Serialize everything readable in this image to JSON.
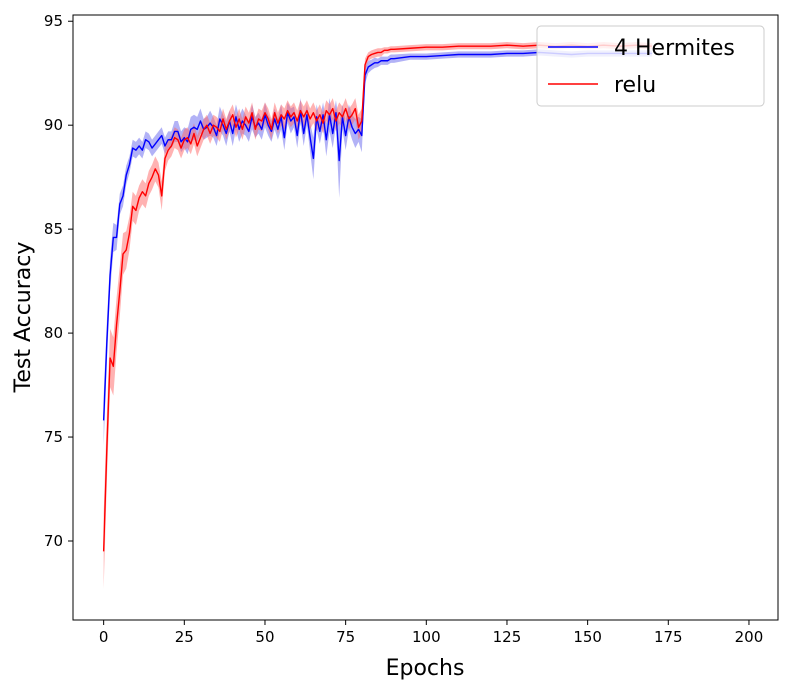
{
  "chart_data": {
    "type": "line",
    "xlabel": "Epochs",
    "ylabel": "Test Accuracy",
    "xlim": [
      -9.5,
      209
    ],
    "ylim": [
      66.2,
      95.3
    ],
    "xticks": [
      0,
      25,
      50,
      75,
      100,
      125,
      150,
      175,
      200
    ],
    "yticks": [
      70,
      75,
      80,
      85,
      90,
      95
    ],
    "grid": false,
    "legend_position": "top-right",
    "series": [
      {
        "name": "4 Hermites",
        "color": "#0000ff",
        "band_color": "#6666ee",
        "x": [
          0,
          1,
          2,
          3,
          4,
          5,
          6,
          7,
          8,
          9,
          10,
          11,
          12,
          13,
          14,
          15,
          16,
          17,
          18,
          19,
          20,
          21,
          22,
          23,
          24,
          25,
          26,
          27,
          28,
          29,
          30,
          31,
          32,
          33,
          34,
          35,
          36,
          37,
          38,
          39,
          40,
          41,
          42,
          43,
          44,
          45,
          46,
          47,
          48,
          49,
          50,
          51,
          52,
          53,
          54,
          55,
          56,
          57,
          58,
          59,
          60,
          61,
          62,
          63,
          64,
          65,
          66,
          67,
          68,
          69,
          70,
          71,
          72,
          73,
          74,
          75,
          76,
          77,
          78,
          79,
          80,
          81,
          82,
          83,
          84,
          85,
          86,
          87,
          88,
          89,
          90,
          95,
          100,
          105,
          110,
          115,
          120,
          125,
          130,
          135,
          140,
          145,
          150,
          155,
          160,
          165,
          170
        ],
        "y": [
          75.8,
          79.6,
          82.8,
          84.6,
          84.6,
          86.2,
          86.6,
          87.6,
          88.1,
          88.9,
          88.8,
          89.0,
          88.8,
          89.3,
          89.2,
          88.9,
          89.1,
          89.3,
          89.5,
          89.0,
          89.3,
          89.3,
          89.7,
          89.7,
          89.2,
          89.4,
          89.2,
          89.8,
          89.9,
          89.8,
          90.2,
          89.8,
          89.9,
          90.1,
          89.9,
          89.5,
          90.3,
          90.0,
          89.6,
          90.2,
          89.6,
          90.4,
          89.8,
          90.2,
          90.0,
          89.7,
          90.4,
          89.9,
          90.1,
          89.8,
          90.5,
          90.0,
          89.7,
          90.3,
          89.8,
          90.4,
          89.4,
          90.6,
          90.2,
          90.4,
          89.5,
          90.7,
          89.6,
          90.5,
          89.4,
          88.4,
          90.4,
          89.7,
          90.5,
          89.3,
          90.5,
          89.6,
          90.6,
          88.3,
          90.4,
          89.5,
          90.4,
          89.9,
          89.6,
          89.8,
          89.5,
          92.4,
          92.8,
          92.9,
          93.0,
          93.0,
          93.1,
          93.1,
          93.1,
          93.2,
          93.2,
          93.3,
          93.3,
          93.35,
          93.4,
          93.4,
          93.4,
          93.45,
          93.45,
          93.5,
          93.45,
          93.4,
          93.45,
          93.45,
          93.45,
          93.45,
          93.45
        ],
        "band": [
          1.2,
          1.0,
          0.8,
          0.7,
          0.6,
          0.5,
          0.5,
          0.45,
          0.4,
          0.4,
          0.4,
          0.4,
          0.4,
          0.4,
          0.4,
          0.4,
          0.4,
          0.4,
          0.4,
          0.4,
          0.4,
          0.4,
          0.5,
          0.5,
          0.5,
          0.5,
          0.6,
          0.6,
          0.6,
          0.6,
          0.6,
          0.5,
          0.5,
          0.6,
          0.5,
          0.5,
          0.6,
          0.5,
          0.6,
          0.5,
          0.6,
          0.6,
          0.6,
          0.6,
          0.5,
          0.5,
          0.6,
          0.5,
          0.5,
          0.5,
          0.6,
          0.5,
          0.5,
          0.5,
          0.5,
          0.6,
          0.6,
          0.5,
          0.6,
          0.5,
          0.6,
          0.6,
          0.6,
          0.5,
          0.7,
          1.0,
          0.6,
          0.6,
          0.6,
          0.8,
          0.8,
          0.7,
          0.6,
          1.8,
          0.6,
          0.7,
          0.6,
          0.6,
          0.7,
          0.6,
          0.8,
          0.4,
          0.3,
          0.25,
          0.25,
          0.2,
          0.2,
          0.2,
          0.2,
          0.2,
          0.2,
          0.15,
          0.15,
          0.15,
          0.15,
          0.15,
          0.15,
          0.15,
          0.15,
          0.15,
          0.15,
          0.15,
          0.15,
          0.15,
          0.15,
          0.15,
          0.15
        ]
      },
      {
        "name": "relu",
        "color": "#ff0000",
        "band_color": "#ff6666",
        "x": [
          0,
          1,
          2,
          3,
          4,
          5,
          6,
          7,
          8,
          9,
          10,
          11,
          12,
          13,
          14,
          15,
          16,
          17,
          18,
          19,
          20,
          21,
          22,
          23,
          24,
          25,
          26,
          27,
          28,
          29,
          30,
          31,
          32,
          33,
          34,
          35,
          36,
          37,
          38,
          39,
          40,
          41,
          42,
          43,
          44,
          45,
          46,
          47,
          48,
          49,
          50,
          51,
          52,
          53,
          54,
          55,
          56,
          57,
          58,
          59,
          60,
          61,
          62,
          63,
          64,
          65,
          66,
          67,
          68,
          69,
          70,
          71,
          72,
          73,
          74,
          75,
          76,
          77,
          78,
          79,
          80,
          81,
          82,
          83,
          84,
          85,
          86,
          87,
          88,
          89,
          90,
          95,
          100,
          105,
          110,
          115,
          120,
          125,
          130,
          135,
          140,
          145,
          150,
          155,
          160,
          165,
          170
        ],
        "y": [
          69.5,
          74.5,
          78.8,
          78.4,
          80.4,
          82.0,
          83.8,
          84.0,
          84.8,
          86.1,
          85.9,
          86.5,
          86.8,
          86.6,
          87.2,
          87.5,
          87.9,
          87.6,
          86.6,
          88.4,
          88.8,
          89.0,
          89.4,
          89.3,
          88.9,
          89.3,
          89.4,
          89.1,
          89.6,
          89.0,
          89.4,
          89.8,
          90.0,
          89.6,
          90.0,
          89.9,
          89.7,
          90.3,
          89.8,
          90.2,
          90.5,
          89.9,
          90.3,
          89.8,
          90.4,
          90.1,
          90.6,
          89.8,
          90.3,
          90.2,
          90.6,
          90.3,
          89.8,
          90.6,
          90.1,
          90.5,
          90.3,
          90.7,
          90.4,
          90.6,
          90.2,
          90.7,
          90.4,
          90.7,
          90.3,
          90.6,
          90.2,
          90.5,
          90.1,
          90.7,
          90.5,
          90.8,
          90.2,
          90.6,
          90.4,
          90.8,
          90.3,
          90.5,
          90.8,
          89.9,
          90.2,
          92.9,
          93.3,
          93.4,
          93.45,
          93.5,
          93.5,
          93.6,
          93.6,
          93.65,
          93.65,
          93.7,
          93.75,
          93.75,
          93.8,
          93.8,
          93.8,
          93.85,
          93.8,
          93.85,
          93.8,
          93.85,
          93.8,
          93.85,
          93.8,
          93.85,
          93.8
        ],
        "band": [
          1.8,
          1.6,
          1.4,
          1.4,
          1.3,
          1.2,
          1.0,
          0.9,
          0.8,
          0.7,
          0.7,
          0.6,
          0.6,
          0.6,
          0.6,
          0.6,
          0.6,
          0.6,
          0.7,
          0.6,
          0.5,
          0.5,
          0.5,
          0.5,
          0.5,
          0.5,
          0.5,
          0.5,
          0.5,
          0.5,
          0.5,
          0.5,
          0.5,
          0.5,
          0.5,
          0.5,
          0.5,
          0.5,
          0.5,
          0.5,
          0.5,
          0.5,
          0.5,
          0.5,
          0.5,
          0.5,
          0.5,
          0.5,
          0.5,
          0.5,
          0.5,
          0.5,
          0.5,
          0.5,
          0.5,
          0.5,
          0.5,
          0.5,
          0.5,
          0.5,
          0.5,
          0.5,
          0.5,
          0.5,
          0.5,
          0.5,
          0.5,
          0.5,
          0.5,
          0.5,
          0.5,
          0.5,
          0.5,
          0.5,
          0.5,
          0.5,
          0.5,
          0.5,
          0.5,
          0.6,
          0.6,
          0.3,
          0.2,
          0.2,
          0.2,
          0.2,
          0.2,
          0.15,
          0.15,
          0.15,
          0.15,
          0.15,
          0.15,
          0.15,
          0.15,
          0.15,
          0.15,
          0.15,
          0.15,
          0.15,
          0.15,
          0.15,
          0.15,
          0.15,
          0.15,
          0.15,
          0.15
        ]
      }
    ]
  }
}
